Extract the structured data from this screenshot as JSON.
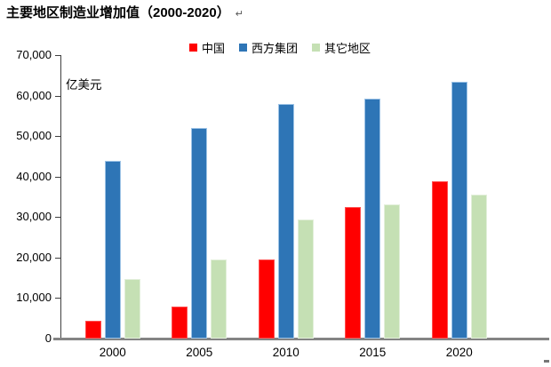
{
  "title": {
    "text": "主要地区制造业增加值（2000-2020）",
    "return_mark": "↵"
  },
  "chart_data": {
    "type": "bar",
    "title": "主要地区制造业增加值（2000-2020）",
    "categories": [
      "2000",
      "2005",
      "2010",
      "2015",
      "2020"
    ],
    "series": [
      {
        "key": "china",
        "name": "中国",
        "color": "#FF0000",
        "edge_color": "#FF5050",
        "values": [
          4000,
          7500,
          19200,
          32000,
          38500
        ]
      },
      {
        "key": "west-bloc",
        "name": "西方集团",
        "color": "#2E75B6",
        "edge_color": "#9DC3E6",
        "values": [
          43500,
          51500,
          57500,
          58700,
          63000
        ]
      },
      {
        "key": "other-regions",
        "name": "其它地区",
        "color": "#C5E0B4",
        "edge_color": "#E2EFDA",
        "values": [
          14200,
          19000,
          29000,
          32800,
          35000
        ]
      }
    ],
    "xlabel": "",
    "ylabel": "亿美元",
    "ylim": [
      0,
      70000
    ],
    "ytick_step": 10000,
    "ytick_labels": [
      "0",
      "10,000",
      "20,000",
      "30,000",
      "40,000",
      "50,000",
      "60,000",
      "70,000"
    ],
    "grid": false,
    "legend_position": "top",
    "axis_color": "#404040",
    "baseline_color": "#848484"
  }
}
